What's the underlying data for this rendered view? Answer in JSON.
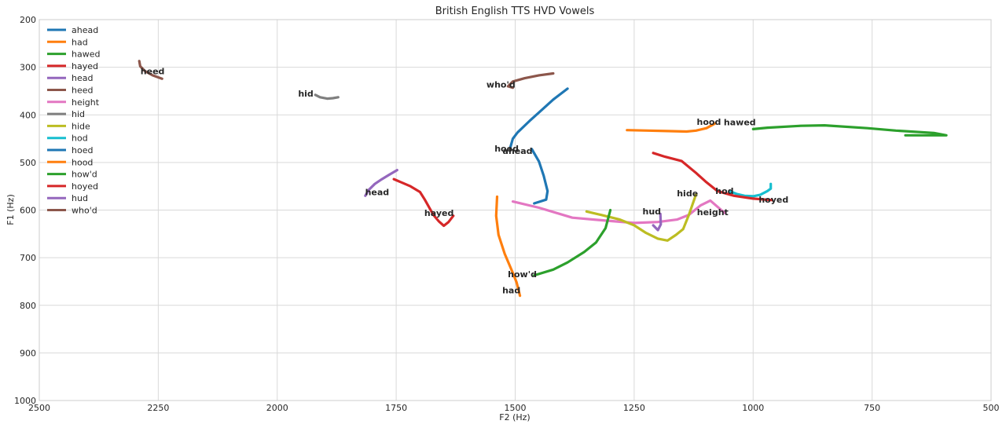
{
  "chart_data": {
    "type": "line",
    "title": "British English TTS HVD Vowels",
    "xlabel": "F2 (Hz)",
    "ylabel": "F1 (Hz)",
    "xlim": [
      2500,
      500
    ],
    "ylim": [
      1000,
      200
    ],
    "x_reversed": true,
    "y_reversed": true,
    "grid": true,
    "legend_position": "top-left",
    "xticks": [
      2500,
      2250,
      2000,
      1750,
      1500,
      1250,
      1000,
      750,
      500
    ],
    "yticks": [
      200,
      300,
      400,
      500,
      600,
      700,
      800,
      900,
      1000
    ],
    "series": [
      {
        "name": "ahead",
        "color": "#1f77b4",
        "label": "ahead",
        "label_at": [
          1495,
          482
        ],
        "points": [
          [
            1465,
            472
          ],
          [
            1450,
            498
          ],
          [
            1440,
            528
          ],
          [
            1432,
            560
          ],
          [
            1435,
            578
          ],
          [
            1460,
            586
          ]
        ]
      },
      {
        "name": "had",
        "color": "#ff7f0e",
        "label": "had",
        "label_at": [
          1508,
          775
        ],
        "points": [
          [
            1538,
            572
          ],
          [
            1540,
            612
          ],
          [
            1535,
            652
          ],
          [
            1522,
            692
          ],
          [
            1505,
            732
          ],
          [
            1497,
            752
          ],
          [
            1490,
            780
          ]
        ]
      },
      {
        "name": "hawed",
        "color": "#2ca02c",
        "label": "hawed",
        "label_at": [
          1028,
          422
        ],
        "points": [
          [
            1000,
            430
          ],
          [
            970,
            427
          ],
          [
            900,
            423
          ],
          [
            850,
            422
          ],
          [
            760,
            428
          ],
          [
            700,
            433
          ],
          [
            620,
            438
          ],
          [
            594,
            443
          ],
          [
            680,
            443
          ]
        ]
      },
      {
        "name": "hayed",
        "color": "#d62728",
        "label": "hayed",
        "label_at": [
          1660,
          612
        ],
        "points": [
          [
            1755,
            535
          ],
          [
            1720,
            550
          ],
          [
            1700,
            562
          ],
          [
            1690,
            578
          ],
          [
            1672,
            610
          ],
          [
            1660,
            624
          ],
          [
            1650,
            633
          ],
          [
            1640,
            625
          ],
          [
            1630,
            612
          ]
        ]
      },
      {
        "name": "head",
        "color": "#9467bd",
        "label": "head",
        "label_at": [
          1790,
          569
        ],
        "points": [
          [
            1815,
            570
          ],
          [
            1808,
            558
          ],
          [
            1795,
            545
          ],
          [
            1780,
            535
          ],
          [
            1765,
            526
          ],
          [
            1748,
            516
          ]
        ]
      },
      {
        "name": "heed",
        "color": "#8c564b",
        "label": "heed",
        "label_at": [
          2262,
          315
        ],
        "points": [
          [
            2290,
            287
          ],
          [
            2288,
            298
          ],
          [
            2278,
            308
          ],
          [
            2262,
            317
          ],
          [
            2242,
            324
          ]
        ]
      },
      {
        "name": "height",
        "color": "#e377c2",
        "label": "height",
        "label_at": [
          1085,
          611
        ],
        "points": [
          [
            1505,
            582
          ],
          [
            1450,
            595
          ],
          [
            1380,
            616
          ],
          [
            1300,
            623
          ],
          [
            1250,
            627
          ],
          [
            1200,
            625
          ],
          [
            1160,
            620
          ],
          [
            1135,
            610
          ],
          [
            1110,
            590
          ],
          [
            1090,
            580
          ],
          [
            1060,
            606
          ]
        ]
      },
      {
        "name": "hid",
        "color": "#7f7f7f",
        "label": "hid",
        "label_at": [
          1940,
          362
        ],
        "points": [
          [
            1920,
            358
          ],
          [
            1910,
            363
          ],
          [
            1895,
            366
          ],
          [
            1883,
            365
          ],
          [
            1872,
            363
          ]
        ]
      },
      {
        "name": "hide",
        "color": "#bcbd22",
        "label": "hide",
        "label_at": [
          1138,
          571
        ],
        "points": [
          [
            1350,
            603
          ],
          [
            1320,
            610
          ],
          [
            1280,
            620
          ],
          [
            1250,
            632
          ],
          [
            1225,
            648
          ],
          [
            1200,
            660
          ],
          [
            1180,
            664
          ],
          [
            1162,
            652
          ],
          [
            1147,
            640
          ],
          [
            1135,
            610
          ],
          [
            1120,
            567
          ]
        ]
      },
      {
        "name": "hod",
        "color": "#17becf",
        "label": "hod",
        "label_at": [
          1060,
          566
        ],
        "points": [
          [
            1050,
            560
          ],
          [
            1035,
            566
          ],
          [
            1018,
            570
          ],
          [
            1000,
            571
          ],
          [
            985,
            568
          ],
          [
            970,
            560
          ],
          [
            963,
            555
          ],
          [
            963,
            545
          ]
        ]
      },
      {
        "name": "hoed",
        "color": "#1f77b4",
        "label": "hoed",
        "label_at": [
          1518,
          477
        ],
        "points": [
          [
            1510,
            468
          ],
          [
            1505,
            450
          ],
          [
            1495,
            437
          ],
          [
            1470,
            413
          ],
          [
            1450,
            395
          ],
          [
            1420,
            368
          ],
          [
            1390,
            345
          ]
        ]
      },
      {
        "name": "hood",
        "color": "#ff7f0e",
        "label": "hood",
        "label_at": [
          1093,
          421
        ],
        "points": [
          [
            1265,
            432
          ],
          [
            1220,
            433
          ],
          [
            1180,
            434
          ],
          [
            1140,
            435
          ],
          [
            1120,
            433
          ],
          [
            1098,
            428
          ],
          [
            1080,
            418
          ]
        ]
      },
      {
        "name": "how'd",
        "color": "#2ca02c",
        "label": "how'd",
        "label_at": [
          1485,
          741
        ],
        "points": [
          [
            1460,
            737
          ],
          [
            1420,
            725
          ],
          [
            1390,
            710
          ],
          [
            1355,
            688
          ],
          [
            1330,
            668
          ],
          [
            1310,
            638
          ],
          [
            1300,
            600
          ]
        ]
      },
      {
        "name": "hoyed",
        "color": "#d62728",
        "label": "hoyed",
        "label_at": [
          957,
          584
        ],
        "points": [
          [
            1210,
            480
          ],
          [
            1185,
            488
          ],
          [
            1150,
            497
          ],
          [
            1120,
            522
          ],
          [
            1100,
            540
          ],
          [
            1075,
            560
          ],
          [
            1040,
            570
          ],
          [
            1000,
            576
          ],
          [
            960,
            579
          ]
        ]
      },
      {
        "name": "hud",
        "color": "#9467bd",
        "label": "hud",
        "label_at": [
          1213,
          609
        ],
        "points": [
          [
            1210,
            632
          ],
          [
            1200,
            642
          ],
          [
            1194,
            630
          ],
          [
            1195,
            608
          ]
        ]
      },
      {
        "name": "who'd",
        "color": "#8c564b",
        "label": "who'd",
        "label_at": [
          1530,
          343
        ],
        "points": [
          [
            1505,
            343
          ],
          [
            1515,
            340
          ],
          [
            1505,
            330
          ],
          [
            1480,
            323
          ],
          [
            1450,
            317
          ],
          [
            1420,
            313
          ]
        ]
      }
    ]
  }
}
